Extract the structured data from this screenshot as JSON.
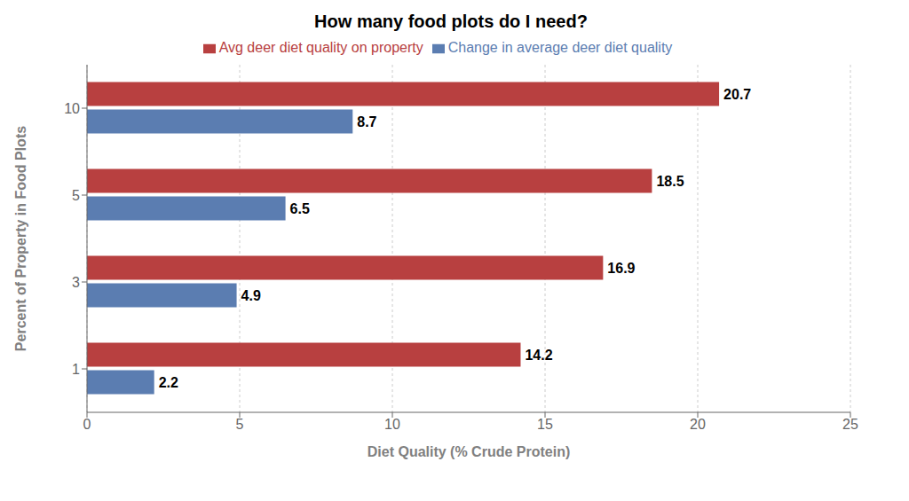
{
  "chart_data": {
    "type": "bar",
    "orientation": "horizontal",
    "title": "How many food plots do I need?",
    "x_label": "Diet Quality (% Crude Protein)",
    "y_label": "Percent of Property in Food Plots",
    "categories": [
      "1",
      "3",
      "5",
      "10"
    ],
    "series": [
      {
        "name": "Avg deer diet quality on property",
        "color": "#b84040",
        "values": [
          14.2,
          16.9,
          18.5,
          20.7
        ]
      },
      {
        "name": "Change in average deer diet quality",
        "color": "#5b7db1",
        "values": [
          2.2,
          4.9,
          6.5,
          8.7
        ]
      }
    ],
    "xlim": [
      0,
      25
    ],
    "xticks": [
      0,
      5,
      10,
      15,
      20,
      25
    ],
    "grid": true,
    "legend": "top",
    "data_labels": true
  }
}
